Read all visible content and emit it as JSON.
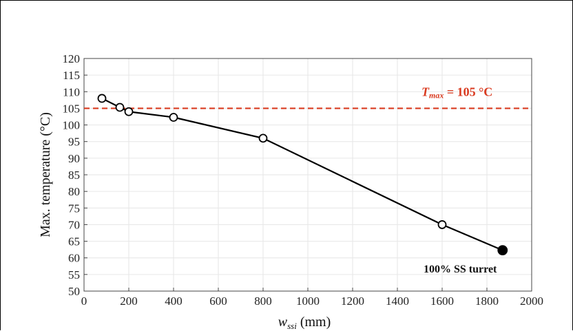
{
  "chart_data": {
    "type": "line",
    "xlabel": "w",
    "xlabel_sub": "ssi",
    "xlabel_unit": "(mm)",
    "ylabel": "Max. temperature (°C)",
    "xlim": [
      0,
      2000
    ],
    "ylim": [
      50,
      120
    ],
    "xticks": [
      0,
      200,
      400,
      600,
      800,
      1000,
      1200,
      1400,
      1600,
      1800,
      2000
    ],
    "yticks": [
      50,
      55,
      60,
      65,
      70,
      75,
      80,
      85,
      90,
      95,
      100,
      105,
      110,
      115,
      120
    ],
    "grid": true,
    "series": [
      {
        "points": [
          {
            "x": 80,
            "y": 108
          },
          {
            "x": 160,
            "y": 105.3
          },
          {
            "x": 200,
            "y": 104
          },
          {
            "x": 400,
            "y": 102.3
          },
          {
            "x": 800,
            "y": 96
          },
          {
            "x": 1600,
            "y": 70
          },
          {
            "x": 1870,
            "y": 62.3
          }
        ],
        "filled_last": true,
        "color": "#000000"
      }
    ],
    "threshold": {
      "y": 105,
      "label_var": "T",
      "label_sub": "max",
      "label_rest": " = 105 °C",
      "color": "#d93a1f"
    },
    "annotation": {
      "text": "100% SS turret",
      "x": 1870,
      "y": 62.3
    }
  }
}
